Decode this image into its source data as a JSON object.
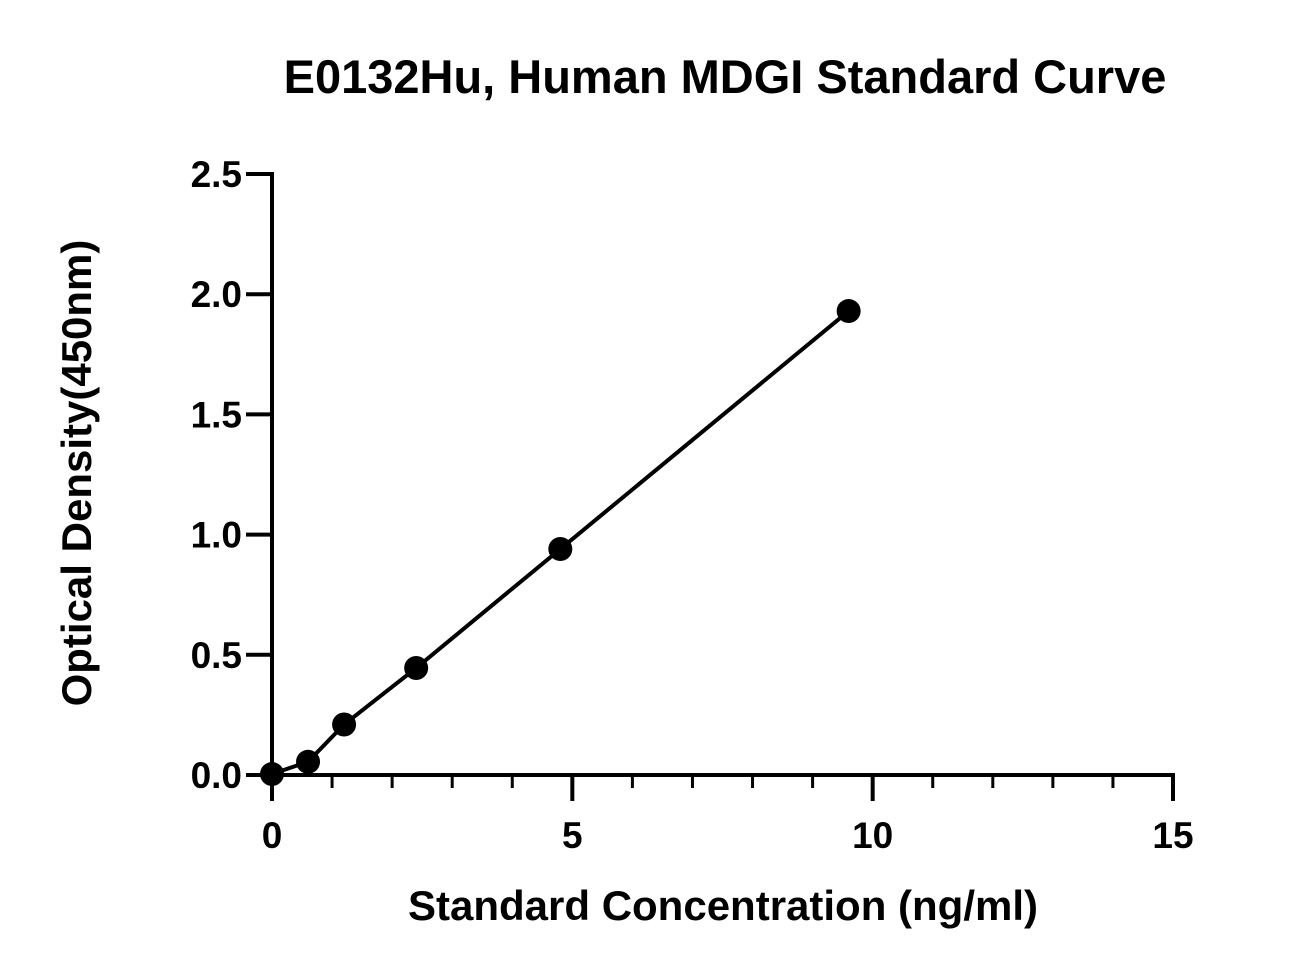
{
  "chart_data": {
    "type": "scatter",
    "title": "E0132Hu, Human MDGI Standard Curve",
    "xlabel": "Standard Concentration (ng/ml)",
    "ylabel": "Optical Density(450nm)",
    "xlim": [
      0,
      15
    ],
    "ylim": [
      0,
      2.5
    ],
    "x_ticks": [
      "0",
      "5",
      "10",
      "15"
    ],
    "y_ticks": [
      "0.0",
      "0.5",
      "1.0",
      "1.5",
      "2.0",
      "2.5"
    ],
    "x_minor_step": 1,
    "grid": false,
    "legend": "none",
    "series": [
      {
        "x": [
          0,
          0.6,
          1.2,
          2.4,
          4.8,
          9.6
        ],
        "y": [
          0.004,
          0.055,
          0.21,
          0.445,
          0.94,
          1.93
        ],
        "fit_line": true,
        "color": "#000000",
        "marker": "filled-circle"
      }
    ]
  }
}
